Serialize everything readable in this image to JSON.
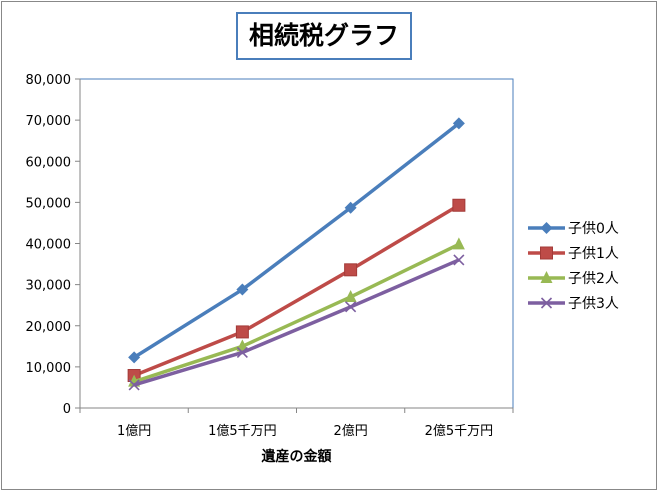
{
  "chart_data": {
    "type": "line",
    "title": "相続税グラフ",
    "xlabel": "遺産の金額",
    "ylabel": "",
    "categories": [
      "1億円",
      "1億5千万円",
      "2億円",
      "2億5千万円"
    ],
    "ylim": [
      0,
      80000
    ],
    "yticks": [
      "0",
      "10,000",
      "20,000",
      "30,000",
      "40,000",
      "50,000",
      "60,000",
      "70,000",
      "80,000"
    ],
    "grid": false,
    "legend": "right",
    "series": [
      {
        "name": "子供0人",
        "color": "#4a7ebb",
        "marker": "diamond",
        "values": [
          12300,
          28800,
          48700,
          69200
        ]
      },
      {
        "name": "子供1人",
        "color": "#be4b48",
        "marker": "square",
        "values": [
          7900,
          18500,
          33600,
          49300
        ]
      },
      {
        "name": "子供2人",
        "color": "#98b954",
        "marker": "triangle",
        "values": [
          6400,
          15000,
          27000,
          39800
        ]
      },
      {
        "name": "子供3人",
        "color": "#7d5fa0",
        "marker": "x",
        "values": [
          5600,
          13500,
          24600,
          36000
        ]
      }
    ]
  }
}
